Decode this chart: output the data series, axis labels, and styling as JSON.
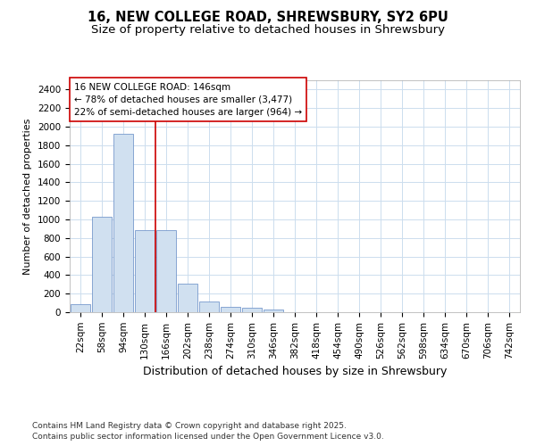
{
  "title_line1": "16, NEW COLLEGE ROAD, SHREWSBURY, SY2 6PU",
  "title_line2": "Size of property relative to detached houses in Shrewsbury",
  "xlabel": "Distribution of detached houses by size in Shrewsbury",
  "ylabel": "Number of detached properties",
  "categories": [
    "22sqm",
    "58sqm",
    "94sqm",
    "130sqm",
    "166sqm",
    "202sqm",
    "238sqm",
    "274sqm",
    "310sqm",
    "346sqm",
    "382sqm",
    "418sqm",
    "454sqm",
    "490sqm",
    "526sqm",
    "562sqm",
    "598sqm",
    "634sqm",
    "670sqm",
    "706sqm",
    "742sqm"
  ],
  "values": [
    90,
    1030,
    1920,
    880,
    880,
    310,
    120,
    60,
    45,
    30,
    0,
    0,
    0,
    0,
    0,
    0,
    0,
    0,
    0,
    0,
    0
  ],
  "bar_color": "#d0e0f0",
  "bar_edge_color": "#7799cc",
  "vline_color": "#cc0000",
  "vline_x_index": 3,
  "annotation_text": "16 NEW COLLEGE ROAD: 146sqm\n← 78% of detached houses are smaller (3,477)\n22% of semi-detached houses are larger (964) →",
  "annotation_box_color": "#ffffff",
  "annotation_box_edge_color": "#cc0000",
  "ylim": [
    0,
    2500
  ],
  "yticks": [
    0,
    200,
    400,
    600,
    800,
    1000,
    1200,
    1400,
    1600,
    1800,
    2000,
    2200,
    2400
  ],
  "background_color": "#ffffff",
  "plot_background_color": "#ffffff",
  "grid_color": "#ccddee",
  "footer_line1": "Contains HM Land Registry data © Crown copyright and database right 2025.",
  "footer_line2": "Contains public sector information licensed under the Open Government Licence v3.0.",
  "title_fontsize": 10.5,
  "subtitle_fontsize": 9.5,
  "xlabel_fontsize": 9,
  "ylabel_fontsize": 8,
  "tick_fontsize": 7.5,
  "annotation_fontsize": 7.5,
  "footer_fontsize": 6.5
}
